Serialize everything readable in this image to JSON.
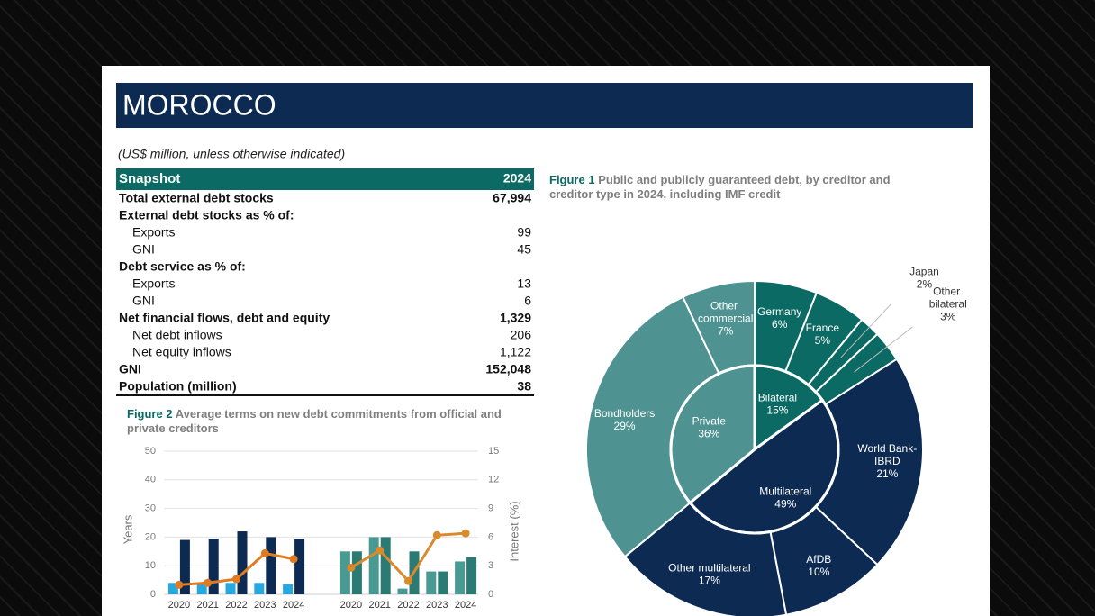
{
  "header": {
    "title": "MOROCCO"
  },
  "note": "(US$ million, unless otherwise indicated)",
  "snapshot": {
    "header": [
      "Snapshot",
      "2024"
    ],
    "rows": [
      {
        "label": "Total external debt stocks",
        "value": "67,994",
        "bold": true,
        "level": 0
      },
      {
        "label": "External debt stocks as % of:",
        "value": null,
        "bold": true,
        "level": 0
      },
      {
        "label": "Exports",
        "value": "99",
        "bold": false,
        "level": 1
      },
      {
        "label": "GNI",
        "value": "45",
        "bold": false,
        "level": 1
      },
      {
        "label": "Debt service as % of:",
        "value": null,
        "bold": true,
        "level": 0
      },
      {
        "label": "Exports",
        "value": "13",
        "bold": false,
        "level": 1
      },
      {
        "label": "GNI",
        "value": "6",
        "bold": false,
        "level": 1
      },
      {
        "label": "Net financial flows, debt and equity",
        "value": "1,329",
        "bold": true,
        "level": 0
      },
      {
        "label": "Net debt inflows",
        "value": "206",
        "bold": false,
        "level": 1
      },
      {
        "label": "Net equity inflows",
        "value": "1,122",
        "bold": false,
        "level": 1
      },
      {
        "label": "GNI",
        "value": "152,048",
        "bold": true,
        "level": 0
      },
      {
        "label": "Population (million)",
        "value": "38",
        "bold": true,
        "level": 0
      }
    ]
  },
  "chart_data": [
    {
      "type": "sunburst",
      "label": "Figure 1",
      "title": "Public and publicly guaranteed debt, by creditor and creditor type in 2024, including IMF credit",
      "inner": {
        "categories": [
          "Bilateral",
          "Multilateral",
          "Private"
        ],
        "values": [
          15,
          49,
          36
        ],
        "value_labels": [
          "15%",
          "49%",
          "36%"
        ],
        "colors": [
          "#0b6a63",
          "#0d2b52",
          "#4e9392"
        ]
      },
      "outer": {
        "categories": [
          "Germany",
          "France",
          "Japan",
          "Other bilateral",
          "World Bank-IBRD",
          "AfDB",
          "Other multilateral",
          "Bondholders",
          "Other commercial"
        ],
        "values": [
          6,
          5,
          2,
          3,
          21,
          10,
          17,
          29,
          7
        ],
        "value_labels": [
          "6%",
          "5%",
          "2%",
          "3%",
          "21%",
          "10%",
          "17%",
          "29%",
          "7%"
        ],
        "parents": [
          0,
          0,
          0,
          0,
          1,
          1,
          1,
          2,
          2
        ]
      }
    },
    {
      "type": "bar",
      "label": "Figure 2",
      "title": "Average terms on new debt commitments from official and private creditors",
      "ylabel": "Years",
      "y2label": "Interest (%)",
      "ylim": [
        0,
        50
      ],
      "yticks": [
        0,
        10,
        20,
        30,
        40,
        50
      ],
      "y2lim": [
        0,
        15
      ],
      "y2ticks": [
        0,
        3,
        6,
        9,
        12,
        15
      ],
      "grid": true,
      "panels": [
        {
          "categories": [
            "2020",
            "2021",
            "2022",
            "2023",
            "2024"
          ],
          "series": [
            {
              "color": "#29a8e0",
              "values": [
                4,
                3.5,
                4,
                4,
                3.5
              ]
            },
            {
              "color": "#0d2b52",
              "values": [
                19,
                19.5,
                22,
                20,
                19.5
              ]
            },
            {
              "type": "line",
              "axis": "y2",
              "color": "#e07b22",
              "values": [
                1.0,
                1.2,
                1.6,
                4.3,
                3.7
              ]
            }
          ]
        },
        {
          "categories": [
            "2020",
            "2021",
            "2022",
            "2023",
            "2024"
          ],
          "series": [
            {
              "color": "#4a9a94",
              "values": [
                15,
                20,
                2,
                8,
                11.5
              ]
            },
            {
              "color": "#2b7a74",
              "values": [
                15,
                20,
                15,
                8,
                13
              ]
            },
            {
              "type": "line",
              "axis": "y2",
              "color": "#d98a2b",
              "values": [
                2.8,
                4.6,
                1.4,
                6.2,
                6.4
              ]
            }
          ]
        }
      ]
    }
  ]
}
